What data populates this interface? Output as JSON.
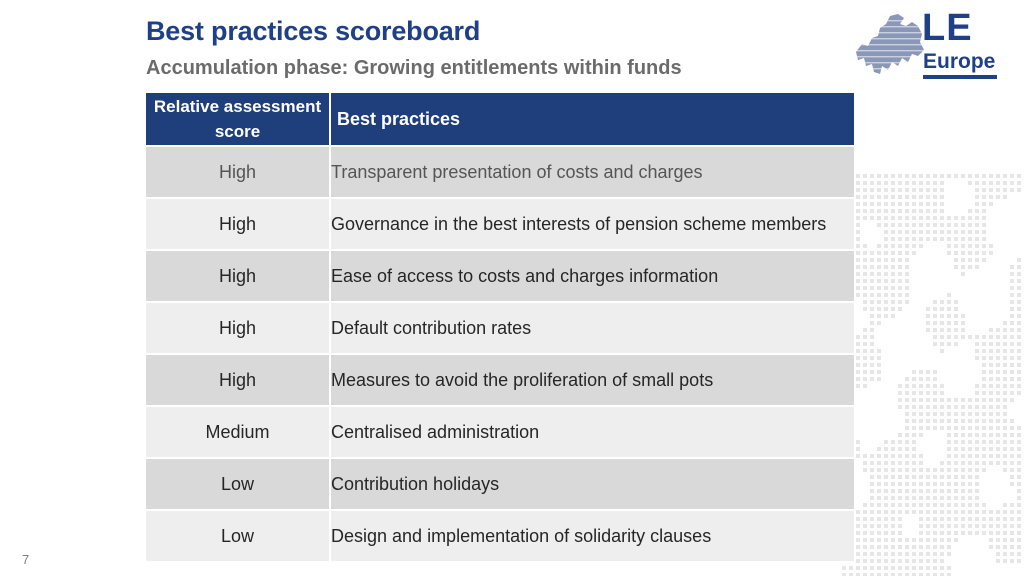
{
  "slide": {
    "title": "Best practices scoreboard",
    "subtitle": "Accumulation phase: Growing entitlements within funds",
    "page_number": "7"
  },
  "logo": {
    "line1": "LE",
    "line2": "Europe",
    "color": "#1f3f86"
  },
  "table": {
    "headers": {
      "score": "Relative assessment score",
      "practice": "Best practices"
    },
    "rows": [
      {
        "score": "High",
        "practice": "Transparent presentation of costs and charges"
      },
      {
        "score": "High",
        "practice": "Governance in the best interests of pension scheme members"
      },
      {
        "score": "High",
        "practice": "Ease of access to costs and charges information"
      },
      {
        "score": "High",
        "practice": "Default contribution rates"
      },
      {
        "score": "High",
        "practice": "Measures to avoid the proliferation of small pots"
      },
      {
        "score": "Medium",
        "practice": "Centralised administration"
      },
      {
        "score": "Low",
        "practice": "Contribution holidays"
      },
      {
        "score": "Low",
        "practice": "Design and implementation of solidarity clauses"
      }
    ],
    "header_color": "#1f3f7c",
    "row_colors": [
      "#d9d9d9",
      "#eeeeee"
    ]
  }
}
